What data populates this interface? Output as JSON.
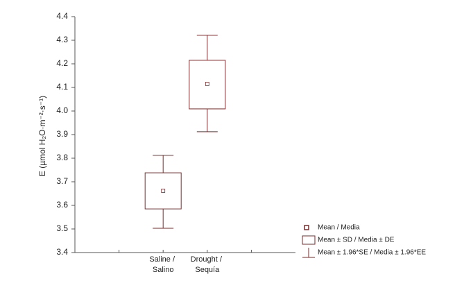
{
  "chart_data": {
    "type": "box",
    "y_label": "E (µmol H₂O·m⁻²·s⁻¹)",
    "categories": [
      null,
      "Saline / Salino",
      "Drought / Sequía",
      null
    ],
    "mean": [
      null,
      3.662,
      4.115,
      null
    ],
    "box_low": [
      null,
      3.585,
      4.009,
      null
    ],
    "box_high": [
      null,
      3.738,
      4.215,
      null
    ],
    "whisker_low": [
      null,
      3.503,
      3.912,
      null
    ],
    "whisker_high": [
      null,
      3.812,
      4.321,
      null
    ],
    "color": "#7b2a2a",
    "ylim": [
      3.4,
      4.4
    ],
    "yticks": [
      3.4,
      3.5,
      3.6,
      3.7,
      3.8,
      3.9,
      {
        "value": 4,
        "label": "4.0"
      },
      4.1,
      4.2,
      4.3,
      4.4
    ],
    "legend": [
      "Mean / Media",
      "Mean ± SD / Media ± DE",
      "Mean ± 1.96*SE / Media ± 1.96*EE"
    ],
    "legend_position": "lower right"
  }
}
